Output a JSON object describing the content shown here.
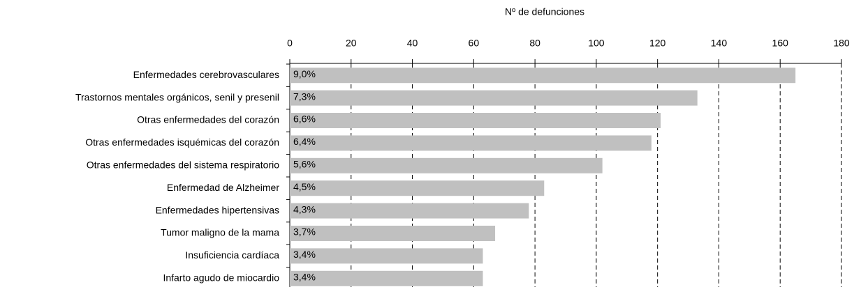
{
  "chart_data": {
    "type": "bar",
    "orientation": "horizontal",
    "x_axis_label": "Nº de defunciones",
    "categories": [
      "Enfermedades cerebrovasculares",
      "Trastornos mentales orgánicos, senil y presenil",
      "Otras enfermedades del corazón",
      "Otras enfermedades isquémicas del corazón",
      "Otras enfermedades del sistema respiratorio",
      "Enfermedad de Alzheimer",
      "Enfermedades hipertensivas",
      "Tumor maligno de la mama",
      "Insuficiencia cardíaca",
      "Infarto agudo de miocardio"
    ],
    "values": [
      165,
      133,
      121,
      118,
      102,
      83,
      78,
      67,
      63,
      63
    ],
    "shares": {
      "values": [
        9.0,
        7.3,
        6.6,
        6.4,
        5.6,
        4.5,
        4.3,
        3.7,
        3.4,
        3.4
      ],
      "value_labels": [
        "9,0%",
        "7,3%",
        "6,6%",
        "6,4%",
        "5,6%",
        "4,5%",
        "4,3%",
        "3,7%",
        "3,4%",
        "3,4%"
      ]
    },
    "color": "#c0c0c0",
    "xlim": [
      0,
      180
    ],
    "xticks": [
      0,
      20,
      40,
      60,
      80,
      100,
      120,
      140,
      160,
      180
    ],
    "grid": true
  }
}
